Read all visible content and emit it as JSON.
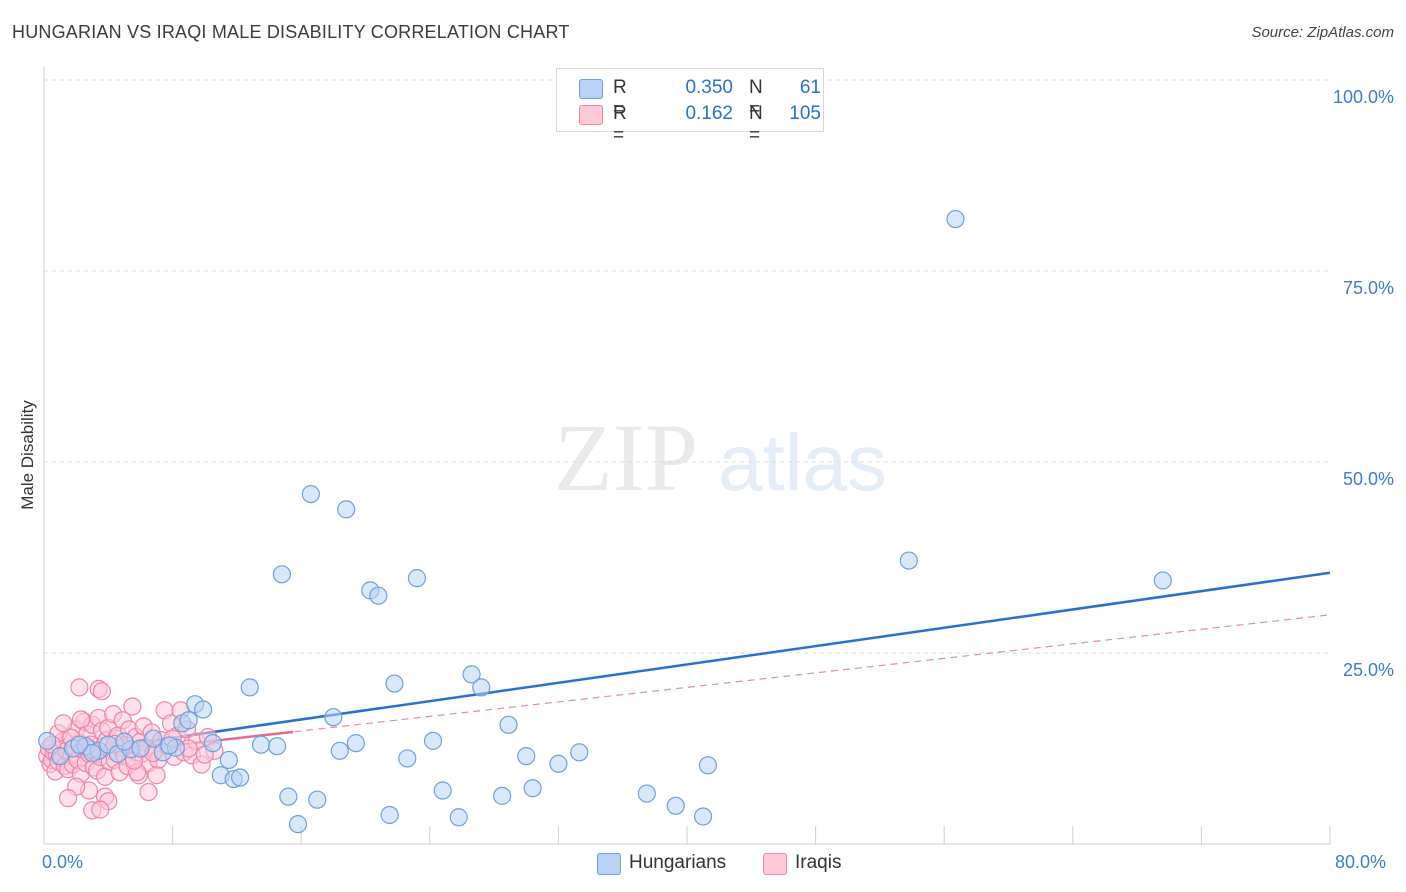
{
  "header": {
    "title": "HUNGARIAN VS IRAQI MALE DISABILITY CORRELATION CHART",
    "source": "Source: ZipAtlas.com"
  },
  "watermark": {
    "zip": "ZIP",
    "atlas": "atlas"
  },
  "legend": {
    "rows": [
      {
        "label": "R =",
        "r_value": "0.350",
        "n_label": "N =",
        "n_value": "61",
        "color": "#b8d3f5",
        "border": "#6f9fdc"
      },
      {
        "label": "R =",
        "r_value": "0.162",
        "n_label": "N =",
        "n_value": "105",
        "color": "#ffc9d8",
        "border": "#ec86a6"
      }
    ]
  },
  "bottom_legend": [
    {
      "label": "Hungarians",
      "color": "#b8d3f5",
      "border": "#6f9fdc"
    },
    {
      "label": "Iraqis",
      "color": "#ffc9d8",
      "border": "#ec86a6"
    }
  ],
  "chart_data": {
    "type": "scatter",
    "title": "HUNGARIAN VS IRAQI MALE DISABILITY CORRELATION CHART",
    "xlabel": "",
    "ylabel": "Male Disability",
    "xlim": [
      0,
      80
    ],
    "ylim": [
      0,
      100
    ],
    "x_tick_labels": [
      "0.0%",
      "80.0%"
    ],
    "y_tick_labels": [
      "25.0%",
      "50.0%",
      "75.0%",
      "100.0%"
    ],
    "y_ticks": [
      25,
      50,
      75,
      100
    ],
    "x_minor_ticks": [
      0,
      8,
      16,
      24,
      32,
      40,
      48,
      56,
      64,
      72,
      80
    ],
    "grid": true,
    "series": [
      {
        "name": "Hungarians",
        "color": "#6f9fdc",
        "fill": "#b8d3f5",
        "trend": {
          "x": [
            0,
            80
          ],
          "y": [
            11.5,
            35.5
          ],
          "style": "solid",
          "color": "#2a6fd0"
        },
        "points": [
          [
            0.2,
            13.5
          ],
          [
            1.0,
            11.5
          ],
          [
            1.8,
            12.5
          ],
          [
            2.6,
            12.8
          ],
          [
            3.4,
            12.2
          ],
          [
            4.0,
            13.0
          ],
          [
            4.6,
            11.8
          ],
          [
            5.4,
            12.4
          ],
          [
            6.0,
            12.5
          ],
          [
            6.8,
            13.8
          ],
          [
            7.4,
            12.0
          ],
          [
            8.2,
            12.6
          ],
          [
            8.6,
            15.8
          ],
          [
            9.0,
            16.2
          ],
          [
            9.4,
            18.3
          ],
          [
            9.9,
            17.6
          ],
          [
            10.5,
            13.2
          ],
          [
            11.0,
            9.0
          ],
          [
            11.5,
            11.0
          ],
          [
            11.8,
            8.5
          ],
          [
            12.2,
            8.7
          ],
          [
            12.8,
            20.5
          ],
          [
            13.5,
            13.0
          ],
          [
            14.5,
            12.8
          ],
          [
            14.8,
            35.3
          ],
          [
            15.2,
            6.2
          ],
          [
            15.8,
            2.6
          ],
          [
            16.6,
            45.8
          ],
          [
            17.0,
            5.8
          ],
          [
            18.0,
            16.6
          ],
          [
            18.4,
            12.2
          ],
          [
            18.8,
            43.8
          ],
          [
            19.4,
            13.2
          ],
          [
            20.3,
            33.2
          ],
          [
            20.8,
            32.5
          ],
          [
            21.5,
            3.8
          ],
          [
            21.8,
            21.0
          ],
          [
            22.6,
            11.2
          ],
          [
            23.2,
            34.8
          ],
          [
            24.2,
            13.5
          ],
          [
            24.8,
            7.0
          ],
          [
            25.8,
            3.5
          ],
          [
            26.6,
            22.2
          ],
          [
            27.2,
            20.5
          ],
          [
            28.5,
            6.3
          ],
          [
            28.9,
            15.6
          ],
          [
            30.0,
            11.5
          ],
          [
            30.4,
            7.3
          ],
          [
            32.0,
            10.5
          ],
          [
            33.3,
            12.0
          ],
          [
            37.5,
            6.6
          ],
          [
            39.3,
            5.0
          ],
          [
            41.0,
            3.6
          ],
          [
            41.3,
            10.3
          ],
          [
            56.7,
            81.8
          ],
          [
            53.8,
            37.1
          ],
          [
            69.6,
            34.5
          ],
          [
            2.2,
            13.0
          ],
          [
            3.0,
            11.9
          ],
          [
            5.0,
            13.4
          ],
          [
            7.8,
            12.9
          ]
        ]
      },
      {
        "name": "Iraqis",
        "color": "#ec86a6",
        "fill": "#ffc9d8",
        "trend": {
          "x": [
            0,
            80
          ],
          "y": [
            11.0,
            30.0
          ],
          "style": "dashed",
          "color": "#e56a92",
          "solid_until": 15.5
        },
        "points": [
          [
            0.2,
            11.5
          ],
          [
            0.3,
            12.5
          ],
          [
            0.4,
            10.5
          ],
          [
            0.5,
            11.0
          ],
          [
            0.6,
            12.0
          ],
          [
            0.7,
            9.5
          ],
          [
            0.8,
            11.8
          ],
          [
            0.9,
            10.8
          ],
          [
            1.0,
            12.8
          ],
          [
            1.1,
            11.2
          ],
          [
            1.2,
            13.5
          ],
          [
            1.3,
            10.2
          ],
          [
            1.4,
            12.2
          ],
          [
            1.5,
            9.8
          ],
          [
            1.6,
            14.0
          ],
          [
            1.7,
            11.6
          ],
          [
            1.8,
            10.4
          ],
          [
            1.9,
            12.6
          ],
          [
            2.0,
            15.0
          ],
          [
            2.1,
            11.0
          ],
          [
            2.2,
            13.2
          ],
          [
            2.3,
            9.2
          ],
          [
            2.4,
            12.4
          ],
          [
            2.5,
            16.0
          ],
          [
            2.6,
            10.6
          ],
          [
            2.7,
            14.4
          ],
          [
            2.8,
            11.8
          ],
          [
            2.9,
            13.0
          ],
          [
            3.0,
            15.6
          ],
          [
            3.1,
            10.0
          ],
          [
            3.2,
            12.0
          ],
          [
            3.3,
            9.6
          ],
          [
            3.4,
            16.5
          ],
          [
            3.5,
            11.4
          ],
          [
            3.6,
            14.8
          ],
          [
            3.7,
            12.8
          ],
          [
            3.8,
            8.8
          ],
          [
            3.9,
            13.6
          ],
          [
            4.0,
            15.2
          ],
          [
            4.1,
            10.8
          ],
          [
            4.2,
            12.2
          ],
          [
            4.3,
            17.0
          ],
          [
            4.4,
            11.0
          ],
          [
            4.5,
            13.8
          ],
          [
            4.6,
            14.2
          ],
          [
            4.7,
            9.4
          ],
          [
            4.8,
            12.6
          ],
          [
            4.9,
            16.2
          ],
          [
            5.0,
            11.6
          ],
          [
            5.1,
            13.0
          ],
          [
            5.2,
            10.2
          ],
          [
            5.3,
            15.0
          ],
          [
            5.4,
            12.4
          ],
          [
            5.5,
            18.0
          ],
          [
            5.6,
            11.2
          ],
          [
            5.7,
            14.0
          ],
          [
            5.8,
            12.0
          ],
          [
            5.9,
            9.0
          ],
          [
            6.0,
            13.4
          ],
          [
            6.1,
            11.8
          ],
          [
            6.2,
            15.4
          ],
          [
            6.3,
            12.6
          ],
          [
            6.5,
            10.6
          ],
          [
            6.7,
            14.6
          ],
          [
            6.9,
            12.2
          ],
          [
            7.1,
            11.0
          ],
          [
            7.3,
            13.6
          ],
          [
            7.5,
            17.5
          ],
          [
            7.7,
            12.8
          ],
          [
            7.9,
            15.8
          ],
          [
            8.1,
            11.4
          ],
          [
            8.3,
            14.2
          ],
          [
            8.5,
            17.5
          ],
          [
            8.7,
            12.0
          ],
          [
            8.9,
            15.0
          ],
          [
            9.2,
            11.6
          ],
          [
            9.5,
            13.4
          ],
          [
            9.8,
            10.4
          ],
          [
            10.2,
            14.0
          ],
          [
            10.6,
            12.2
          ],
          [
            2.2,
            20.5
          ],
          [
            3.4,
            20.3
          ],
          [
            3.6,
            20.0
          ],
          [
            3.8,
            6.2
          ],
          [
            4.0,
            5.6
          ],
          [
            3.0,
            4.4
          ],
          [
            3.5,
            4.5
          ],
          [
            2.8,
            7.0
          ],
          [
            2.0,
            7.5
          ],
          [
            1.5,
            6.0
          ],
          [
            6.5,
            6.8
          ],
          [
            5.8,
            9.4
          ],
          [
            7.0,
            9.0
          ],
          [
            0.9,
            14.5
          ],
          [
            1.2,
            15.8
          ],
          [
            2.3,
            16.3
          ],
          [
            0.5,
            13.0
          ],
          [
            1.7,
            13.9
          ],
          [
            2.9,
            12.4
          ],
          [
            4.4,
            13.1
          ],
          [
            5.6,
            10.9
          ],
          [
            6.8,
            11.9
          ],
          [
            8.0,
            13.8
          ],
          [
            9.0,
            12.5
          ],
          [
            10.0,
            11.7
          ]
        ]
      }
    ]
  }
}
